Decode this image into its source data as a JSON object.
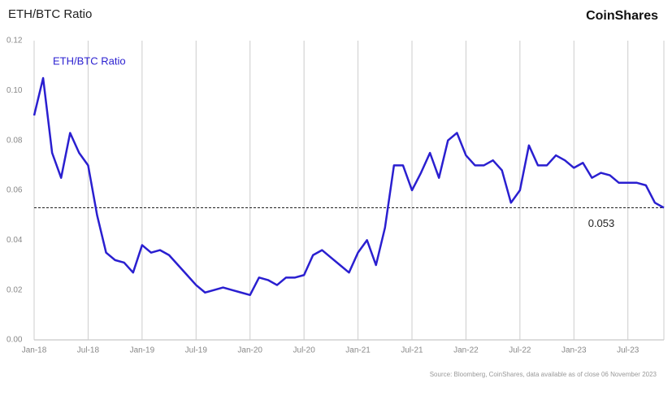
{
  "chart_data": {
    "type": "line",
    "title": "ETH/BTC Ratio",
    "brand": "CoinShares",
    "source": "Source: Bloomberg, CoinShares, data available as of close 06 November 2023",
    "categories": [
      "Jan-18",
      null,
      null,
      null,
      null,
      null,
      "Jul-18",
      null,
      null,
      null,
      null,
      null,
      "Jan-19",
      null,
      null,
      null,
      null,
      null,
      "Jul-19",
      null,
      null,
      null,
      null,
      null,
      "Jan-20",
      null,
      null,
      null,
      null,
      null,
      "Jul-20",
      null,
      null,
      null,
      null,
      null,
      "Jan-21",
      null,
      null,
      null,
      null,
      null,
      "Jul-21",
      null,
      null,
      null,
      null,
      null,
      "Jan-22",
      null,
      null,
      null,
      null,
      null,
      "Jul-22",
      null,
      null,
      null,
      null,
      null,
      "Jan-23",
      null,
      null,
      null,
      null,
      null,
      "Jul-23",
      null,
      null,
      null,
      null
    ],
    "series": [
      {
        "name": "ETH/BTC Ratio",
        "color": "#2a1fd0",
        "values": [
          0.09,
          0.105,
          0.075,
          0.065,
          0.083,
          0.075,
          0.07,
          0.05,
          0.035,
          0.032,
          0.031,
          0.027,
          0.038,
          0.035,
          0.036,
          0.034,
          0.03,
          0.026,
          0.022,
          0.019,
          0.02,
          0.021,
          0.02,
          0.019,
          0.018,
          0.025,
          0.024,
          0.022,
          0.025,
          0.025,
          0.026,
          0.034,
          0.036,
          0.033,
          0.03,
          0.027,
          0.035,
          0.04,
          0.03,
          0.045,
          0.07,
          0.07,
          0.06,
          0.067,
          0.075,
          0.065,
          0.08,
          0.083,
          0.074,
          0.07,
          0.07,
          0.072,
          0.068,
          0.055,
          0.06,
          0.078,
          0.07,
          0.07,
          0.074,
          0.072,
          0.069,
          0.071,
          0.065,
          0.067,
          0.066,
          0.063,
          0.063,
          0.063,
          0.062,
          0.055,
          0.053
        ]
      }
    ],
    "reference": 0.053,
    "ylim": [
      0,
      0.12
    ],
    "yticks": [
      {
        "value": 0,
        "label": "0.00"
      },
      {
        "value": 0.02,
        "label": "0.02"
      },
      {
        "value": 0.04,
        "label": "0.04"
      },
      {
        "value": 0.06,
        "label": "0.06"
      },
      {
        "value": 0.08,
        "label": "0.08"
      },
      {
        "value": 0.1,
        "label": "0.10"
      },
      {
        "value": 0.12,
        "label": "0.12"
      }
    ],
    "grid": true
  }
}
